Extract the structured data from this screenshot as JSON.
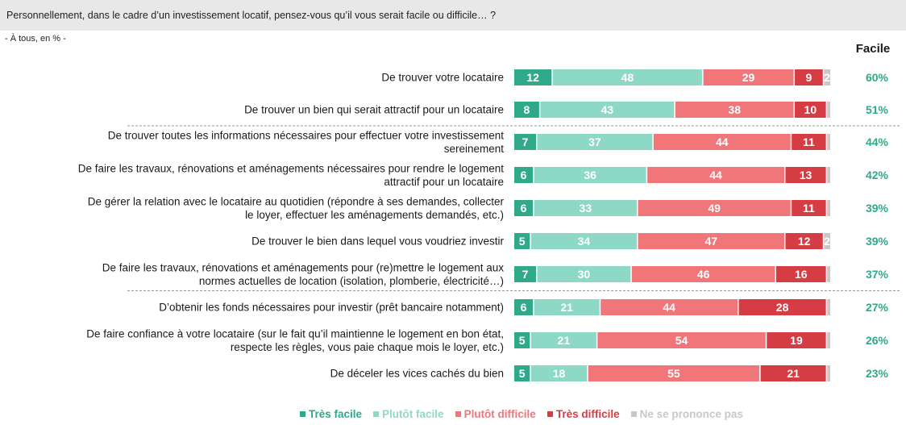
{
  "header": {
    "question": "Personnellement, dans le cadre d’un investissement locatif, pensez-vous qu’il vous serait facile ou difficile… ?",
    "base": "- À tous, en % -"
  },
  "facile_column_label": "Facile",
  "colors": {
    "tres_facile": "#2fa98a",
    "plutot_facile": "#8dd9c6",
    "plutot_difficile": "#f0767a",
    "tres_difficile": "#d63c43",
    "nsp": "#c8c8c8",
    "facile_text": "#2fa98a",
    "header_bg": "#e8e8e8"
  },
  "legend": [
    {
      "key": "tres_facile",
      "label": "Très facile"
    },
    {
      "key": "plutot_facile",
      "label": "Plutôt facile"
    },
    {
      "key": "plutot_difficile",
      "label": "Plutôt difficile"
    },
    {
      "key": "tres_difficile",
      "label": "Très difficile"
    },
    {
      "key": "nsp",
      "label": "Ne se prononce pas"
    }
  ],
  "chart_data": {
    "type": "bar",
    "orientation": "horizontal",
    "stacked": true,
    "series": [
      {
        "name": "Très facile",
        "values": [
          12,
          8,
          7,
          6,
          6,
          5,
          7,
          6,
          5,
          5
        ]
      },
      {
        "name": "Plutôt facile",
        "values": [
          48,
          43,
          37,
          36,
          33,
          34,
          30,
          21,
          21,
          18
        ]
      },
      {
        "name": "Plutôt difficile",
        "values": [
          29,
          38,
          44,
          44,
          49,
          47,
          46,
          44,
          54,
          55
        ]
      },
      {
        "name": "Très difficile",
        "values": [
          9,
          10,
          11,
          13,
          11,
          12,
          16,
          28,
          19,
          21
        ]
      },
      {
        "name": "Ne se prononce pas",
        "values": [
          2,
          1,
          1,
          1,
          1,
          2,
          1,
          1,
          1,
          1
        ]
      }
    ],
    "show_value_labels": [
      [
        true,
        true,
        true,
        true,
        true,
        true,
        true,
        true,
        true,
        true
      ],
      [
        true,
        true,
        true,
        true,
        true,
        true,
        true,
        true,
        true,
        true
      ],
      [
        true,
        true,
        true,
        true,
        true,
        true,
        true,
        true,
        true,
        true
      ],
      [
        true,
        true,
        true,
        true,
        true,
        true,
        true,
        true,
        true,
        true
      ],
      [
        true,
        false,
        false,
        false,
        false,
        true,
        false,
        false,
        false,
        false
      ]
    ],
    "categories": [
      [
        "De trouver votre locataire"
      ],
      [
        "De trouver un bien qui serait attractif pour un locataire"
      ],
      [
        "De trouver toutes les informations nécessaires pour effectuer votre investissement",
        "sereinement"
      ],
      [
        "De faire les travaux, rénovations et aménagements nécessaires pour rendre le logement",
        "attractif pour un locataire"
      ],
      [
        "De gérer la relation avec le locataire au quotidien (répondre à ses demandes, collecter",
        "le loyer, effectuer les aménagements demandés, etc.)"
      ],
      [
        "De trouver le bien dans lequel vous voudriez investir"
      ],
      [
        "De faire les travaux, rénovations et aménagements pour (re)mettre le logement aux",
        "normes actuelles de location (isolation, plomberie, électricité…)"
      ],
      [
        "D’obtenir les fonds nécessaires pour investir (prêt bancaire notamment)"
      ],
      [
        "De faire confiance à votre locataire (sur le fait qu’il maintienne le logement en bon état,",
        "respecte les règles, vous paie chaque mois le loyer, etc.)"
      ],
      [
        "De déceler les vices cachés du bien"
      ]
    ],
    "facile_totals": [
      "60%",
      "51%",
      "44%",
      "42%",
      "39%",
      "39%",
      "37%",
      "27%",
      "26%",
      "23%"
    ],
    "separators_after": [
      1,
      6
    ]
  }
}
